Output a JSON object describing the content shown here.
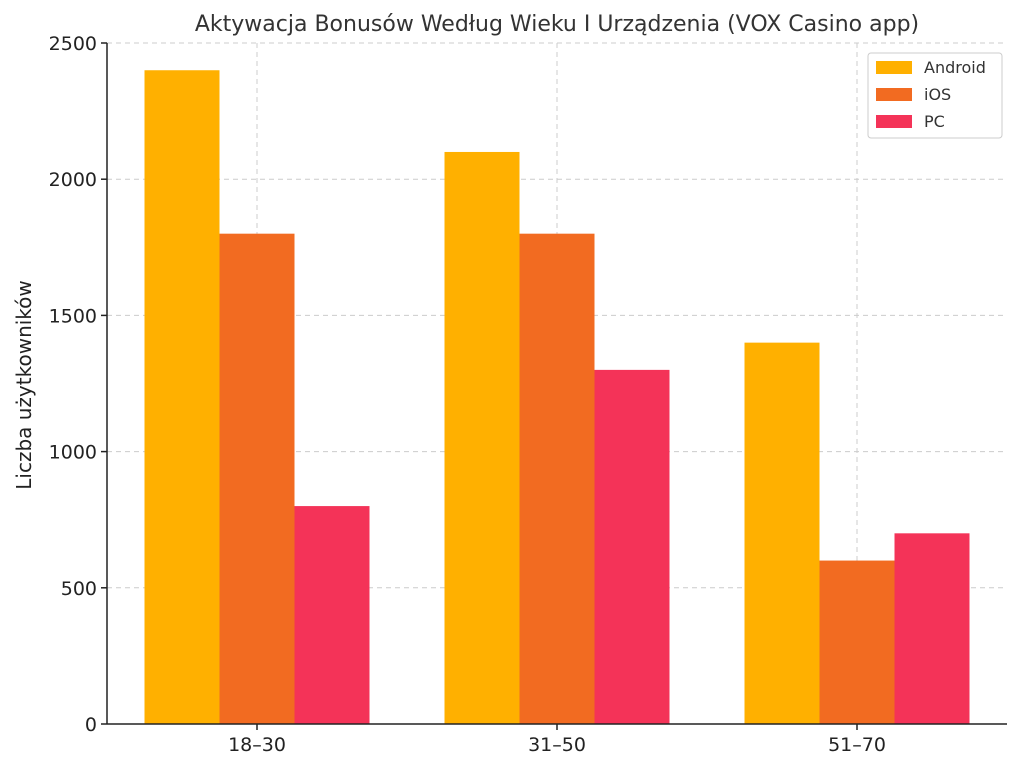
{
  "chart_data": {
    "type": "bar",
    "title": "Aktywacja Bonusów Według Wieku I Urządzenia (VOX Casino app)",
    "xlabel": "",
    "ylabel": "Liczba użytkowników",
    "categories": [
      "18–30",
      "31–50",
      "51–70"
    ],
    "series": [
      {
        "name": "Android",
        "values": [
          2400,
          2100,
          1400
        ],
        "color": "#FFB000"
      },
      {
        "name": "iOS",
        "values": [
          1800,
          1800,
          600
        ],
        "color": "#F26B21"
      },
      {
        "name": "PC",
        "values": [
          800,
          1300,
          700
        ],
        "color": "#F43358"
      }
    ],
    "ylim": [
      0,
      2500
    ],
    "yticks": [
      0,
      500,
      1000,
      1500,
      2000,
      2500
    ],
    "grid": true,
    "legend": "top-right"
  }
}
